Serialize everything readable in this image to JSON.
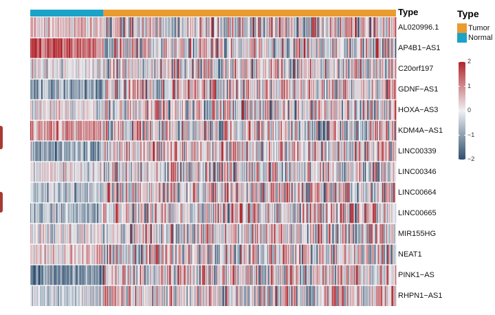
{
  "chart_data": {
    "type": "heatmap",
    "annotation": {
      "title": "Type",
      "legend_title": "Type",
      "categories": [
        {
          "name": "Tumor",
          "color": "#e99c2f"
        },
        {
          "name": "Normal",
          "color": "#1aa3c9"
        }
      ],
      "normal_fraction": 0.2
    },
    "rows": [
      {
        "name": "AL020996.1",
        "normal_level": 0.3,
        "tumor_level": 0.1
      },
      {
        "name": "AP4B1−AS1",
        "normal_level": 1.4,
        "tumor_level": 0.0
      },
      {
        "name": "C20orf197",
        "normal_level": 0.0,
        "tumor_level": 0.0
      },
      {
        "name": "GDNF−AS1",
        "normal_level": -1.0,
        "tumor_level": 0.15
      },
      {
        "name": "HOXA−AS3",
        "normal_level": -0.1,
        "tumor_level": 0.0
      },
      {
        "name": "KDM4A−AS1",
        "normal_level": 0.8,
        "tumor_level": 0.0
      },
      {
        "name": "LINC00339",
        "normal_level": -1.0,
        "tumor_level": 0.2
      },
      {
        "name": "LINC00346",
        "normal_level": 0.1,
        "tumor_level": 0.0
      },
      {
        "name": "LINC00664",
        "normal_level": -0.6,
        "tumor_level": 0.1
      },
      {
        "name": "LINC00665",
        "normal_level": -0.8,
        "tumor_level": 0.15
      },
      {
        "name": "MIR155HG",
        "normal_level": 0.0,
        "tumor_level": 0.0
      },
      {
        "name": "NEAT1",
        "normal_level": 0.4,
        "tumor_level": 0.0
      },
      {
        "name": "PINK1−AS",
        "normal_level": -1.2,
        "tumor_level": 0.2
      },
      {
        "name": "RHPN1−AS1",
        "normal_level": -0.5,
        "tumor_level": 0.1
      }
    ],
    "color_scale": {
      "min": -2,
      "max": 2,
      "low_color": "#2f4f6f",
      "mid_color": "#eef0f3",
      "high_color": "#b2252c",
      "ticks": [
        "2",
        "1",
        "0",
        "−1",
        "−2"
      ]
    },
    "n_columns": 400
  }
}
